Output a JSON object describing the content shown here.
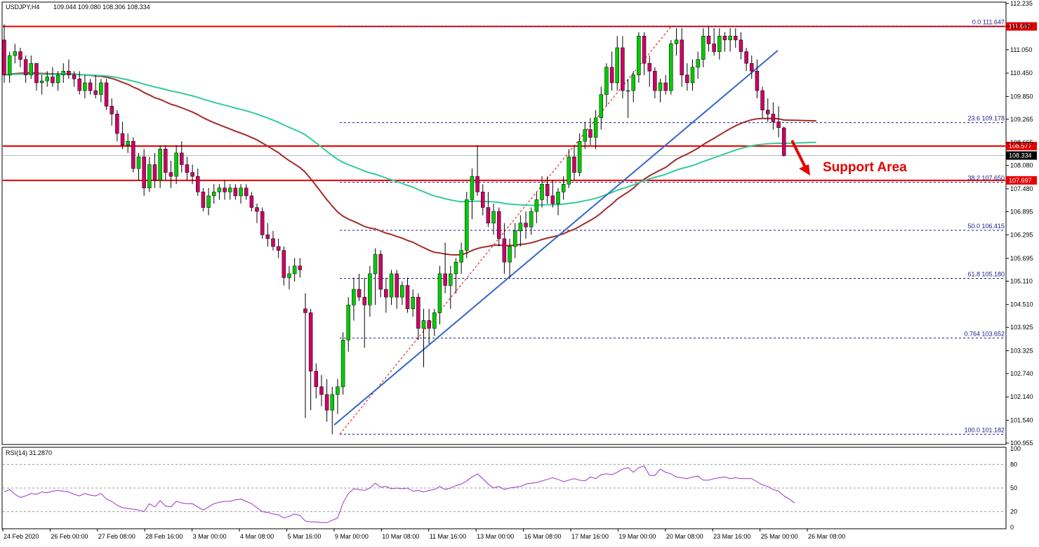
{
  "chart_data": {
    "type": "candlestick",
    "symbol_label": "USDJPY,H4",
    "ohlc_label": "109.044 109.080 108.306 108.334",
    "current_price_label": "108.334",
    "rsi_label": "RSI(14) 31.2870",
    "annotation_text": "Support Area",
    "y_range": [
      100.955,
      112.235
    ],
    "price_ticks": [
      "112.235",
      "111.650",
      "111.050",
      "110.450",
      "109.850",
      "109.265",
      "108.665",
      "108.080",
      "107.480",
      "106.895",
      "106.295",
      "105.695",
      "105.110",
      "104.510",
      "103.925",
      "103.325",
      "102.740",
      "102.140",
      "101.540",
      "100.955"
    ],
    "rsi_ticks": [
      "100",
      "80",
      "50",
      "20",
      "0"
    ],
    "rsi_levels": [
      80,
      50,
      20
    ],
    "dates": [
      "24 Feb 2020",
      "26 Feb 00:00",
      "27 Feb 08:00",
      "28 Feb 16:00",
      "3 Mar 00:00",
      "4 Mar 08:00",
      "5 Mar 16:00",
      "9 Mar 00:00",
      "10 Mar 08:00",
      "11 Mar 16:00",
      "13 Mar 00:00",
      "16 Mar 08:00",
      "17 Mar 16:00",
      "19 Mar 00:00",
      "20 Mar 08:00",
      "23 Mar 16:00",
      "25 Mar 00:00",
      "26 Mar 08:00"
    ],
    "horizontal_levels": [
      {
        "price": 111.647,
        "label": "111.647",
        "color": "#e60000"
      },
      {
        "price": 108.577,
        "label": "108.577",
        "color": "#e60000"
      },
      {
        "price": 107.697,
        "label": "107.697",
        "color": "#e60000"
      }
    ],
    "fib_levels": [
      {
        "price": 111.647,
        "label": "0.0 111.647"
      },
      {
        "price": 109.178,
        "label": "23.6 109.178"
      },
      {
        "price": 107.65,
        "label": "38.2 107.650"
      },
      {
        "price": 106.415,
        "label": "50.0 106.415"
      },
      {
        "price": 105.18,
        "label": "61.8 105.180"
      },
      {
        "price": 103.652,
        "label": "0.764 103.652"
      },
      {
        "price": 101.182,
        "label": "100.0 101.182"
      }
    ],
    "colors": {
      "bull": "#00cc00",
      "bear": "#cc0066",
      "ma_slow": "#a52a2a",
      "ma_fast": "#33cc99",
      "trend": "#3366cc",
      "level": "#e60000",
      "rsi": "#9933cc",
      "fib": "#1a1a8c"
    },
    "candles": [
      {
        "o": 111.3,
        "h": 111.7,
        "l": 110.2,
        "c": 110.4
      },
      {
        "o": 110.4,
        "h": 111.0,
        "l": 110.2,
        "c": 110.9
      },
      {
        "o": 110.9,
        "h": 111.2,
        "l": 110.7,
        "c": 111.0
      },
      {
        "o": 111.0,
        "h": 111.1,
        "l": 110.6,
        "c": 110.8
      },
      {
        "o": 110.8,
        "h": 110.9,
        "l": 110.2,
        "c": 110.4
      },
      {
        "o": 110.4,
        "h": 110.9,
        "l": 110.3,
        "c": 110.7
      },
      {
        "o": 110.7,
        "h": 110.7,
        "l": 110.0,
        "c": 110.2
      },
      {
        "o": 110.2,
        "h": 110.4,
        "l": 109.9,
        "c": 110.25
      },
      {
        "o": 110.25,
        "h": 110.5,
        "l": 110.1,
        "c": 110.35
      },
      {
        "o": 110.35,
        "h": 110.6,
        "l": 110.1,
        "c": 110.2
      },
      {
        "o": 110.2,
        "h": 110.5,
        "l": 110.0,
        "c": 110.4
      },
      {
        "o": 110.4,
        "h": 110.7,
        "l": 110.2,
        "c": 110.5
      },
      {
        "o": 110.5,
        "h": 110.8,
        "l": 110.3,
        "c": 110.4
      },
      {
        "o": 110.4,
        "h": 110.5,
        "l": 110.1,
        "c": 110.3
      },
      {
        "o": 110.3,
        "h": 110.5,
        "l": 109.9,
        "c": 110.0
      },
      {
        "o": 110.0,
        "h": 110.4,
        "l": 109.8,
        "c": 110.2
      },
      {
        "o": 110.2,
        "h": 110.3,
        "l": 109.9,
        "c": 110.0
      },
      {
        "o": 110.0,
        "h": 110.4,
        "l": 109.8,
        "c": 109.9
      },
      {
        "o": 109.9,
        "h": 110.3,
        "l": 109.7,
        "c": 110.2
      },
      {
        "o": 110.2,
        "h": 110.3,
        "l": 109.5,
        "c": 109.6
      },
      {
        "o": 109.6,
        "h": 109.8,
        "l": 109.1,
        "c": 109.4
      },
      {
        "o": 109.4,
        "h": 109.5,
        "l": 108.7,
        "c": 108.9
      },
      {
        "o": 108.9,
        "h": 109.2,
        "l": 108.5,
        "c": 108.6
      },
      {
        "o": 108.6,
        "h": 108.9,
        "l": 108.4,
        "c": 108.7
      },
      {
        "o": 108.7,
        "h": 108.8,
        "l": 107.9,
        "c": 108.0
      },
      {
        "o": 108.0,
        "h": 108.4,
        "l": 107.7,
        "c": 108.3
      },
      {
        "o": 108.3,
        "h": 108.5,
        "l": 107.3,
        "c": 107.5
      },
      {
        "o": 107.5,
        "h": 108.3,
        "l": 107.4,
        "c": 108.1
      },
      {
        "o": 108.1,
        "h": 108.4,
        "l": 107.5,
        "c": 107.7
      },
      {
        "o": 107.7,
        "h": 108.6,
        "l": 107.5,
        "c": 108.5
      },
      {
        "o": 108.5,
        "h": 108.6,
        "l": 107.7,
        "c": 107.9
      },
      {
        "o": 107.9,
        "h": 108.2,
        "l": 107.5,
        "c": 107.8
      },
      {
        "o": 107.8,
        "h": 108.6,
        "l": 107.6,
        "c": 108.4
      },
      {
        "o": 108.4,
        "h": 108.7,
        "l": 107.9,
        "c": 108.1
      },
      {
        "o": 108.1,
        "h": 108.3,
        "l": 107.7,
        "c": 107.9
      },
      {
        "o": 107.9,
        "h": 108.1,
        "l": 107.6,
        "c": 107.8
      },
      {
        "o": 107.8,
        "h": 108.0,
        "l": 107.3,
        "c": 107.4
      },
      {
        "o": 107.4,
        "h": 107.5,
        "l": 106.9,
        "c": 107.0
      },
      {
        "o": 107.0,
        "h": 107.5,
        "l": 106.8,
        "c": 107.3
      },
      {
        "o": 107.3,
        "h": 107.6,
        "l": 107.1,
        "c": 107.4
      },
      {
        "o": 107.4,
        "h": 107.6,
        "l": 107.2,
        "c": 107.5
      },
      {
        "o": 107.5,
        "h": 107.7,
        "l": 107.2,
        "c": 107.4
      },
      {
        "o": 107.4,
        "h": 107.6,
        "l": 107.2,
        "c": 107.5
      },
      {
        "o": 107.5,
        "h": 107.6,
        "l": 107.2,
        "c": 107.3
      },
      {
        "o": 107.3,
        "h": 107.6,
        "l": 107.1,
        "c": 107.5
      },
      {
        "o": 107.5,
        "h": 107.6,
        "l": 107.2,
        "c": 107.3
      },
      {
        "o": 107.3,
        "h": 107.4,
        "l": 106.9,
        "c": 107.0
      },
      {
        "o": 107.0,
        "h": 107.1,
        "l": 106.6,
        "c": 106.9
      },
      {
        "o": 106.9,
        "h": 107.0,
        "l": 106.2,
        "c": 106.3
      },
      {
        "o": 106.3,
        "h": 106.6,
        "l": 106.0,
        "c": 106.2
      },
      {
        "o": 106.2,
        "h": 106.4,
        "l": 105.9,
        "c": 106.0
      },
      {
        "o": 106.0,
        "h": 106.2,
        "l": 105.7,
        "c": 105.9
      },
      {
        "o": 105.9,
        "h": 106.0,
        "l": 105.0,
        "c": 105.2
      },
      {
        "o": 105.2,
        "h": 105.5,
        "l": 104.9,
        "c": 105.3
      },
      {
        "o": 105.3,
        "h": 105.7,
        "l": 105.1,
        "c": 105.5
      },
      {
        "o": 105.5,
        "h": 105.7,
        "l": 105.2,
        "c": 105.4
      },
      {
        "o": 104.4,
        "h": 104.8,
        "l": 101.6,
        "c": 104.3
      },
      {
        "o": 104.3,
        "h": 104.4,
        "l": 101.8,
        "c": 102.8
      },
      {
        "o": 102.8,
        "h": 103.0,
        "l": 102.1,
        "c": 102.4
      },
      {
        "o": 102.4,
        "h": 102.7,
        "l": 101.9,
        "c": 102.2
      },
      {
        "o": 102.2,
        "h": 102.6,
        "l": 101.5,
        "c": 101.8
      },
      {
        "o": 101.8,
        "h": 102.4,
        "l": 101.18,
        "c": 102.2
      },
      {
        "o": 102.2,
        "h": 102.6,
        "l": 101.7,
        "c": 102.4
      },
      {
        "o": 102.4,
        "h": 103.8,
        "l": 102.2,
        "c": 103.6
      },
      {
        "o": 103.6,
        "h": 104.7,
        "l": 103.3,
        "c": 104.5
      },
      {
        "o": 104.5,
        "h": 105.2,
        "l": 104.1,
        "c": 104.9
      },
      {
        "o": 104.9,
        "h": 105.3,
        "l": 104.6,
        "c": 104.7
      },
      {
        "o": 104.7,
        "h": 105.2,
        "l": 103.4,
        "c": 104.5
      },
      {
        "o": 104.5,
        "h": 105.5,
        "l": 104.2,
        "c": 105.3
      },
      {
        "o": 105.3,
        "h": 105.95,
        "l": 104.5,
        "c": 105.8
      },
      {
        "o": 105.8,
        "h": 105.9,
        "l": 104.7,
        "c": 104.9
      },
      {
        "o": 104.9,
        "h": 105.2,
        "l": 104.3,
        "c": 104.7
      },
      {
        "o": 104.7,
        "h": 105.4,
        "l": 104.5,
        "c": 105.3
      },
      {
        "o": 105.3,
        "h": 105.4,
        "l": 104.4,
        "c": 104.7
      },
      {
        "o": 104.7,
        "h": 105.1,
        "l": 104.5,
        "c": 105.0
      },
      {
        "o": 105.0,
        "h": 105.2,
        "l": 104.3,
        "c": 104.4
      },
      {
        "o": 104.4,
        "h": 104.9,
        "l": 104.2,
        "c": 104.7
      },
      {
        "o": 104.7,
        "h": 104.8,
        "l": 103.6,
        "c": 103.9
      },
      {
        "o": 103.9,
        "h": 104.4,
        "l": 102.9,
        "c": 104.1
      },
      {
        "o": 104.1,
        "h": 104.4,
        "l": 103.5,
        "c": 103.9
      },
      {
        "o": 103.9,
        "h": 104.4,
        "l": 103.7,
        "c": 104.3
      },
      {
        "o": 104.3,
        "h": 105.5,
        "l": 104.0,
        "c": 105.3
      },
      {
        "o": 105.3,
        "h": 106.1,
        "l": 104.8,
        "c": 105.0
      },
      {
        "o": 105.0,
        "h": 105.5,
        "l": 104.4,
        "c": 105.3
      },
      {
        "o": 105.3,
        "h": 105.7,
        "l": 104.8,
        "c": 105.6
      },
      {
        "o": 105.6,
        "h": 106.1,
        "l": 105.3,
        "c": 105.9
      },
      {
        "o": 105.9,
        "h": 107.4,
        "l": 105.7,
        "c": 107.2
      },
      {
        "o": 107.2,
        "h": 108.0,
        "l": 106.7,
        "c": 107.8
      },
      {
        "o": 107.8,
        "h": 108.6,
        "l": 107.3,
        "c": 107.4
      },
      {
        "o": 107.4,
        "h": 107.6,
        "l": 106.8,
        "c": 107.0
      },
      {
        "o": 107.0,
        "h": 107.4,
        "l": 106.5,
        "c": 106.6
      },
      {
        "o": 106.6,
        "h": 107.1,
        "l": 106.3,
        "c": 106.9
      },
      {
        "o": 106.9,
        "h": 107.0,
        "l": 106.0,
        "c": 106.2
      },
      {
        "o": 106.2,
        "h": 106.6,
        "l": 105.3,
        "c": 105.6
      },
      {
        "o": 105.6,
        "h": 106.2,
        "l": 105.2,
        "c": 106.0
      },
      {
        "o": 106.0,
        "h": 106.6,
        "l": 105.7,
        "c": 106.4
      },
      {
        "o": 106.4,
        "h": 106.8,
        "l": 106.0,
        "c": 106.6
      },
      {
        "o": 106.6,
        "h": 106.9,
        "l": 106.2,
        "c": 106.5
      },
      {
        "o": 106.5,
        "h": 107.0,
        "l": 106.3,
        "c": 106.9
      },
      {
        "o": 106.9,
        "h": 107.4,
        "l": 106.6,
        "c": 107.2
      },
      {
        "o": 107.2,
        "h": 107.8,
        "l": 107.0,
        "c": 107.6
      },
      {
        "o": 107.6,
        "h": 107.8,
        "l": 107.1,
        "c": 107.3
      },
      {
        "o": 107.3,
        "h": 107.7,
        "l": 107.0,
        "c": 107.1
      },
      {
        "o": 107.1,
        "h": 107.5,
        "l": 106.8,
        "c": 107.4
      },
      {
        "o": 107.4,
        "h": 107.8,
        "l": 107.2,
        "c": 107.6
      },
      {
        "o": 107.6,
        "h": 108.5,
        "l": 107.5,
        "c": 108.3
      },
      {
        "o": 108.3,
        "h": 108.6,
        "l": 107.7,
        "c": 107.9
      },
      {
        "o": 107.9,
        "h": 108.9,
        "l": 107.8,
        "c": 108.7
      },
      {
        "o": 108.7,
        "h": 109.2,
        "l": 108.5,
        "c": 109.0
      },
      {
        "o": 109.0,
        "h": 109.3,
        "l": 108.6,
        "c": 108.8
      },
      {
        "o": 108.8,
        "h": 109.5,
        "l": 108.5,
        "c": 109.3
      },
      {
        "o": 109.3,
        "h": 110.1,
        "l": 109.0,
        "c": 109.9
      },
      {
        "o": 109.9,
        "h": 110.7,
        "l": 109.6,
        "c": 110.6
      },
      {
        "o": 110.6,
        "h": 111.0,
        "l": 110.0,
        "c": 110.2
      },
      {
        "o": 110.2,
        "h": 111.4,
        "l": 110.0,
        "c": 111.1
      },
      {
        "o": 111.1,
        "h": 111.4,
        "l": 109.8,
        "c": 110.0
      },
      {
        "o": 110.0,
        "h": 110.3,
        "l": 109.3,
        "c": 110.0
      },
      {
        "o": 110.0,
        "h": 110.5,
        "l": 109.7,
        "c": 110.4
      },
      {
        "o": 110.4,
        "h": 111.5,
        "l": 110.2,
        "c": 111.4
      },
      {
        "o": 111.4,
        "h": 111.5,
        "l": 110.4,
        "c": 110.7
      },
      {
        "o": 110.7,
        "h": 110.9,
        "l": 110.1,
        "c": 110.5
      },
      {
        "o": 110.5,
        "h": 110.6,
        "l": 109.8,
        "c": 110.0
      },
      {
        "o": 110.0,
        "h": 110.3,
        "l": 109.7,
        "c": 110.2
      },
      {
        "o": 110.2,
        "h": 110.4,
        "l": 109.9,
        "c": 110.0
      },
      {
        "o": 110.0,
        "h": 111.3,
        "l": 109.9,
        "c": 111.2
      },
      {
        "o": 111.2,
        "h": 111.6,
        "l": 110.9,
        "c": 111.3
      },
      {
        "o": 111.3,
        "h": 111.6,
        "l": 110.1,
        "c": 110.4
      },
      {
        "o": 110.4,
        "h": 110.7,
        "l": 110.0,
        "c": 110.2
      },
      {
        "o": 110.2,
        "h": 110.8,
        "l": 110.0,
        "c": 110.6
      },
      {
        "o": 110.6,
        "h": 111.0,
        "l": 110.3,
        "c": 110.8
      },
      {
        "o": 110.8,
        "h": 111.6,
        "l": 110.6,
        "c": 111.4
      },
      {
        "o": 111.4,
        "h": 111.65,
        "l": 111.0,
        "c": 111.2
      },
      {
        "o": 111.2,
        "h": 111.6,
        "l": 110.9,
        "c": 111.0
      },
      {
        "o": 111.0,
        "h": 111.6,
        "l": 110.8,
        "c": 111.4
      },
      {
        "o": 111.4,
        "h": 111.5,
        "l": 111.0,
        "c": 111.3
      },
      {
        "o": 111.3,
        "h": 111.6,
        "l": 111.0,
        "c": 111.4
      },
      {
        "o": 111.4,
        "h": 111.6,
        "l": 111.1,
        "c": 111.3
      },
      {
        "o": 111.3,
        "h": 111.5,
        "l": 110.8,
        "c": 111.0
      },
      {
        "o": 111.0,
        "h": 111.1,
        "l": 110.5,
        "c": 110.7
      },
      {
        "o": 110.7,
        "h": 110.9,
        "l": 110.3,
        "c": 110.5
      },
      {
        "o": 110.5,
        "h": 110.8,
        "l": 109.8,
        "c": 110.0
      },
      {
        "o": 110.0,
        "h": 110.1,
        "l": 109.3,
        "c": 109.5
      },
      {
        "o": 109.5,
        "h": 109.8,
        "l": 109.2,
        "c": 109.4
      },
      {
        "o": 109.4,
        "h": 109.7,
        "l": 109.0,
        "c": 109.2
      },
      {
        "o": 109.2,
        "h": 109.6,
        "l": 108.8,
        "c": 109.05
      },
      {
        "o": 109.044,
        "h": 109.08,
        "l": 108.306,
        "c": 108.334
      }
    ],
    "rsi_values": [
      45,
      48,
      42,
      38,
      40,
      43,
      42,
      45,
      44,
      46,
      47,
      46,
      45,
      42,
      40,
      43,
      41,
      40,
      43,
      36,
      33,
      28,
      25,
      24,
      23,
      22,
      20,
      30,
      26,
      34,
      27,
      26,
      33,
      31,
      30,
      30,
      26,
      22,
      26,
      30,
      32,
      33,
      33,
      35,
      36,
      33,
      30,
      25,
      20,
      19,
      17,
      16,
      12,
      14,
      17,
      15,
      8,
      7,
      7,
      6,
      6,
      9,
      12,
      31,
      43,
      49,
      48,
      47,
      50,
      56,
      51,
      52,
      49,
      50,
      49,
      50,
      46,
      47,
      45,
      47,
      48,
      52,
      48,
      50,
      53,
      55,
      59,
      64,
      68,
      62,
      55,
      50,
      52,
      48,
      50,
      51,
      52,
      55,
      56,
      57,
      59,
      61,
      63,
      61,
      58,
      60,
      62,
      60,
      59,
      64,
      62,
      67,
      68,
      67,
      70,
      74,
      76,
      70,
      76,
      78,
      66,
      66,
      74,
      70,
      68,
      64,
      63,
      62,
      64,
      65,
      60,
      60,
      62,
      63,
      64,
      62,
      63,
      62,
      62,
      62,
      58,
      54,
      52,
      48,
      46,
      40,
      36,
      31
    ]
  }
}
